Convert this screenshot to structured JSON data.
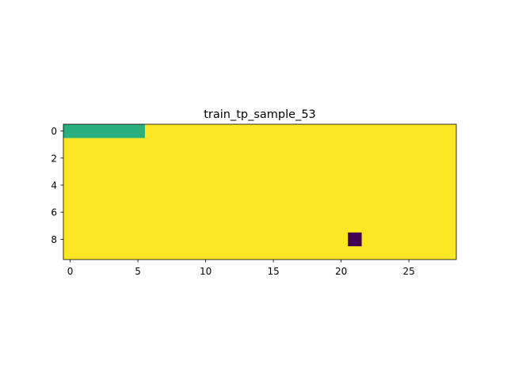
{
  "chart_data": {
    "type": "heatmap",
    "title": "train_tp_sample_53",
    "xlabel": "",
    "ylabel": "",
    "rows": 10,
    "cols": 29,
    "xlim": [
      -0.5,
      28.5
    ],
    "ylim": [
      9.5,
      -0.5
    ],
    "x_ticks": [
      0,
      5,
      10,
      15,
      20,
      25
    ],
    "y_ticks": [
      0,
      2,
      4,
      6,
      8
    ],
    "colormap": "viridis",
    "background_value": 1.0,
    "background_color": "#fde725",
    "cells": [
      {
        "row": 0,
        "col": 0,
        "value": 0.6,
        "color": "#2ab07f"
      },
      {
        "row": 0,
        "col": 1,
        "value": 0.6,
        "color": "#2ab07f"
      },
      {
        "row": 0,
        "col": 2,
        "value": 0.6,
        "color": "#2ab07f"
      },
      {
        "row": 0,
        "col": 3,
        "value": 0.6,
        "color": "#2ab07f"
      },
      {
        "row": 0,
        "col": 4,
        "value": 0.6,
        "color": "#2ab07f"
      },
      {
        "row": 0,
        "col": 5,
        "value": 0.6,
        "color": "#2ab07f"
      },
      {
        "row": 8,
        "col": 21,
        "value": 0.0,
        "color": "#440154"
      }
    ],
    "grid": false,
    "legend": "none"
  }
}
